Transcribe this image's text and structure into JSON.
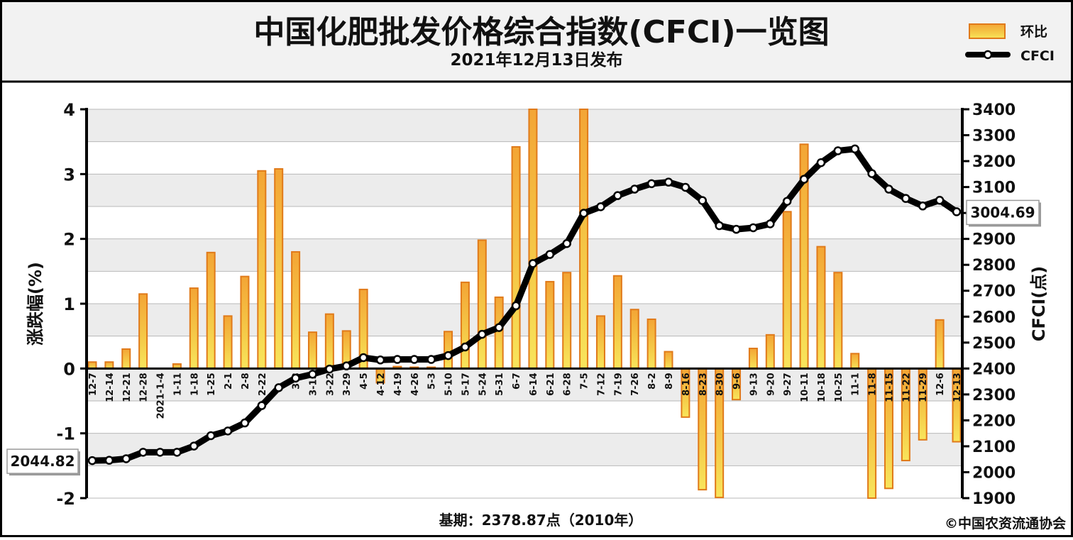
{
  "title": "中国化肥批发价格综合指数(CFCI)一览图",
  "subtitle": "2021年12月13日发布",
  "legend": {
    "bar_label": "环比",
    "line_label": "CFCI"
  },
  "base_note": "基期：2378.87点（2010年）",
  "copyright": "©中国农资流通协会",
  "colors": {
    "bar_fill": "#f5c242",
    "bar_stroke": "#e07a1a",
    "line": "#000000",
    "grid_band": "#ececec",
    "header_bg": "#f2f2f2"
  },
  "chart_data": {
    "type": "bar+line",
    "title": "中国化肥批发价格综合指数(CFCI)一览图",
    "ylabel_left": "涨跌幅(%)",
    "ylabel_right": "CFCI(点)",
    "ylim_left": [
      -2,
      4
    ],
    "ylim_right": [
      1900,
      3400
    ],
    "left_ticks": [
      "4",
      "3",
      "2",
      "1",
      "0",
      "-1",
      "-2"
    ],
    "right_ticks": [
      "3400",
      "3300",
      "3200",
      "3100",
      "3000",
      "2900",
      "2800",
      "2700",
      "2600",
      "2500",
      "2400",
      "2300",
      "2200",
      "2100",
      "2000",
      "1900"
    ],
    "categories": [
      "12-7",
      "12-14",
      "12-21",
      "12-28",
      "2021-1-4",
      "1-11",
      "1-18",
      "1-25",
      "2-1",
      "2-8",
      "2-22",
      "3-1",
      "3-8",
      "3-15",
      "3-22",
      "3-29",
      "4-5",
      "4-12",
      "4-19",
      "4-26",
      "5-3",
      "5-10",
      "5-17",
      "5-24",
      "5-31",
      "6-7",
      "6-14",
      "6-21",
      "6-28",
      "7-5",
      "7-12",
      "7-19",
      "7-26",
      "8-2",
      "8-9",
      "8-16",
      "8-23",
      "8-30",
      "9-6",
      "9-13",
      "9-20",
      "9-27",
      "10-11",
      "10-18",
      "10-25",
      "11-1",
      "11-8",
      "11-15",
      "11-22",
      "11-29",
      "12-6",
      "12-13"
    ],
    "shown_tick_labels": [
      "12-7",
      "12-14",
      "12-21",
      "12-28",
      "2021-1-4",
      "1-11",
      "1-18",
      "1-25",
      "2-1",
      "2-8",
      "2-22",
      "3-8",
      "3-15",
      "3-22",
      "3-29",
      "4-5",
      "4-12",
      "4-19",
      "4-26",
      "5-3",
      "5-10",
      "5-17",
      "5-24",
      "5-31",
      "6-7",
      "6-14",
      "6-21",
      "6-28",
      "7-5",
      "7-12",
      "7-19",
      "7-26",
      "8-2",
      "8-9",
      "8-16",
      "8-23",
      "8-30",
      "9-6",
      "9-13",
      "9-20",
      "9-27",
      "10-11",
      "10-18",
      "10-25",
      "11-1",
      "11-8",
      "11-15",
      "11-22",
      "11-29",
      "12-6",
      "12-13"
    ],
    "series": [
      {
        "name": "环比",
        "type": "bar",
        "axis": "left",
        "values": [
          0.1,
          0.1,
          0.3,
          1.15,
          0,
          0.07,
          1.24,
          1.79,
          0.81,
          1.42,
          3.05,
          3.08,
          1.8,
          0.56,
          0.84,
          0.58,
          1.22,
          -0.22,
          0.03,
          0.02,
          0.02,
          0.57,
          1.33,
          1.98,
          1.1,
          3.42,
          4.0,
          1.34,
          1.48,
          4.0,
          0.81,
          1.43,
          0.91,
          0.76,
          0.26,
          -0.75,
          -1.87,
          -1.99,
          -0.48,
          0.31,
          0.52,
          2.42,
          3.46,
          1.88,
          1.48,
          0.23,
          -2.0,
          -1.85,
          -1.42,
          -1.1,
          0.75,
          -1.13
        ]
      },
      {
        "name": "CFCI",
        "type": "line",
        "axis": "right",
        "values": [
          2044.82,
          2046,
          2052,
          2077,
          2077,
          2077,
          2101,
          2141,
          2159,
          2190,
          2257,
          2326,
          2363,
          2378,
          2398,
          2410,
          2442,
          2433,
          2435,
          2435,
          2435,
          2450,
          2483,
          2532,
          2558,
          2642,
          2805,
          2840,
          2882,
          2999,
          3024,
          3067,
          3092,
          3113,
          3119,
          3099,
          3048,
          2951,
          2937,
          2943,
          2958,
          3045,
          3130,
          3194,
          3240,
          3247,
          3152,
          3092,
          3056,
          3027,
          3049,
          3004.69
        ]
      }
    ],
    "annotations": [
      {
        "label": "2044.82"
      },
      {
        "label": "3004.69"
      }
    ]
  }
}
